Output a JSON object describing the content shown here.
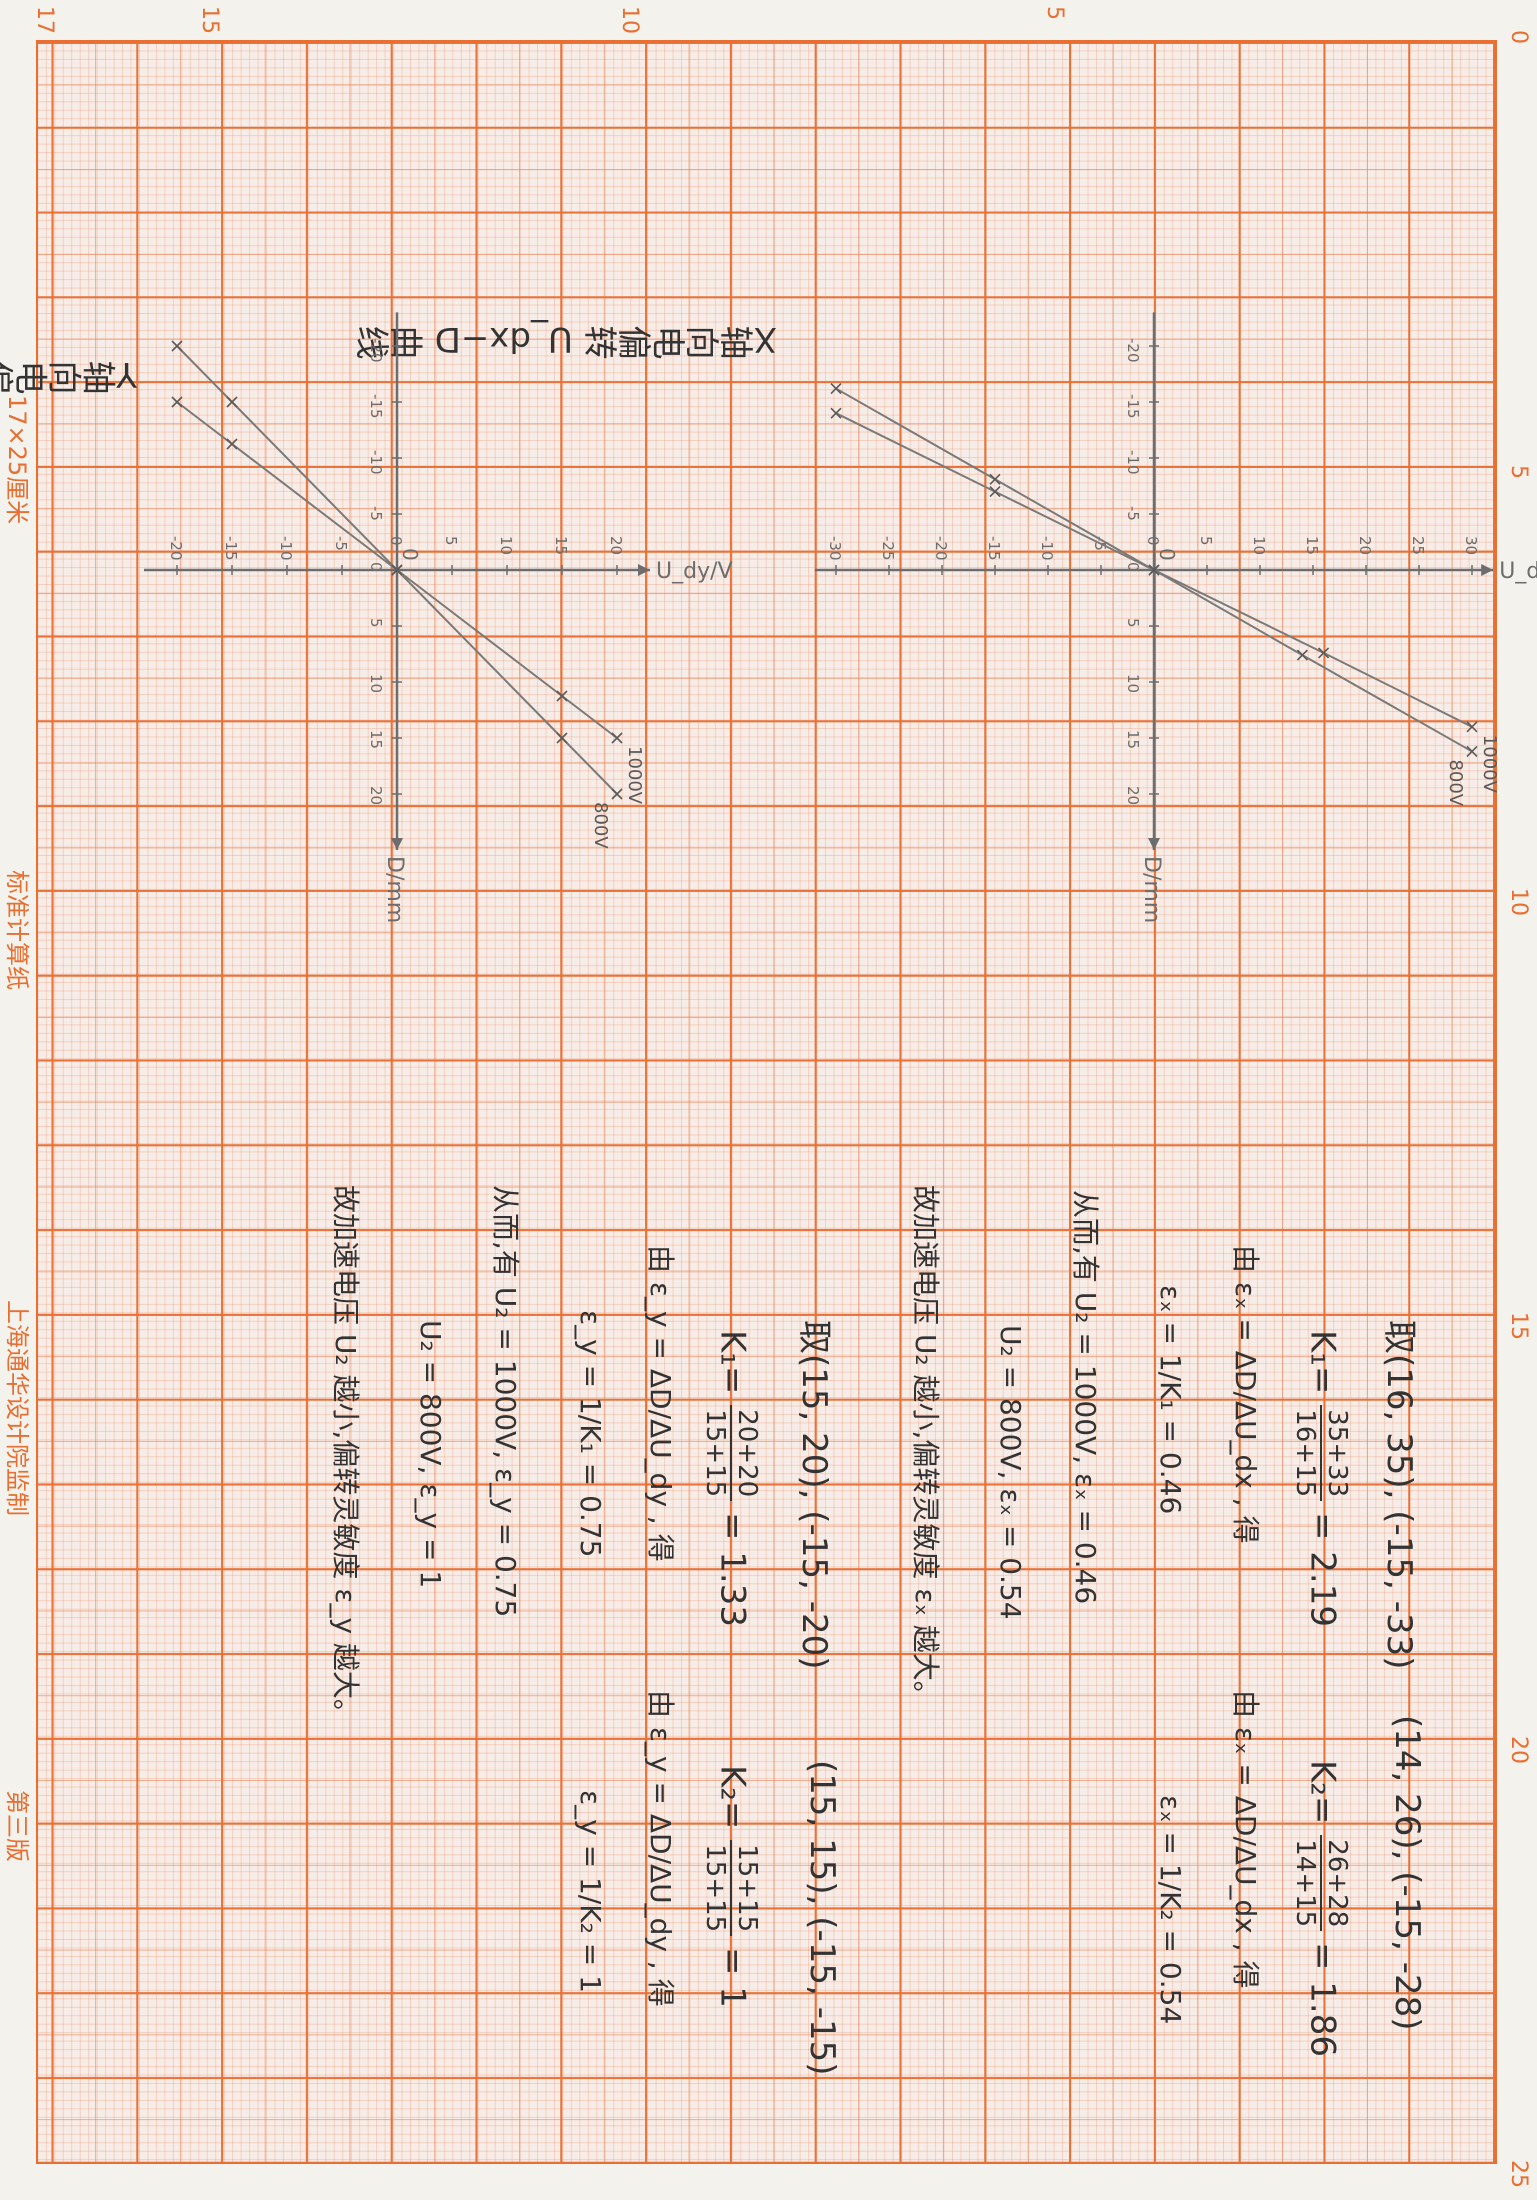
{
  "paper": {
    "edge_numbers_top": [
      "0",
      "5",
      "10",
      "15",
      "20",
      "25"
    ],
    "edge_numbers_side": [
      "17",
      "15",
      "10",
      "5"
    ],
    "paper_size_label": "17×25厘米",
    "brand_labels": [
      "标准计算纸",
      "上海通华设计院监制",
      "第三版"
    ]
  },
  "chart_data": [
    {
      "type": "line",
      "title": "X轴向电偏转 U_dx−D 曲线",
      "xlabel": "U_dx/V",
      "ylabel": "D/mm",
      "x_ticks": [
        "-30",
        "-25",
        "-20",
        "-15",
        "-10",
        "-5",
        "0",
        "5",
        "10",
        "15",
        "20",
        "25",
        "30"
      ],
      "y_ticks": [
        "-20",
        "-15",
        "-10",
        "-5",
        "0",
        "5",
        "10",
        "15",
        "20"
      ],
      "series": [
        {
          "name": "1000V",
          "slope": 0.46,
          "x": [
            -30,
            -15,
            0,
            16,
            30
          ],
          "y": [
            -14,
            -7,
            0,
            7.4,
            14
          ]
        },
        {
          "name": "800V",
          "slope": 0.54,
          "x": [
            -30,
            -15,
            0,
            14,
            30
          ],
          "y": [
            -16.2,
            -8.1,
            0,
            7.6,
            16.2
          ]
        }
      ]
    },
    {
      "type": "line",
      "title": "Y轴向电偏转 U_dy−D 曲线",
      "xlabel": "U_dy/V",
      "ylabel": "D/mm",
      "x_ticks": [
        "-20",
        "-15",
        "-10",
        "-5",
        "0",
        "5",
        "10",
        "15",
        "20"
      ],
      "y_ticks": [
        "-20",
        "-15",
        "-10",
        "-5",
        "0",
        "5",
        "10",
        "15",
        "20"
      ],
      "series": [
        {
          "name": "1000V",
          "slope": 0.75,
          "x": [
            -20,
            -15,
            0,
            15,
            20
          ],
          "y": [
            -15,
            -11.25,
            0,
            11.25,
            15
          ]
        },
        {
          "name": "800V",
          "slope": 1,
          "x": [
            -20,
            -15,
            0,
            15,
            20
          ],
          "y": [
            -20,
            -15,
            0,
            15,
            20
          ]
        }
      ]
    }
  ],
  "notes": {
    "x_pick1": "取(16, 35), (-15, -33)",
    "x_pick2": "(14, 26), (-15, -28)",
    "x_k1_lhs": "K₁=",
    "x_k1_num": "35+33",
    "x_k1_den": "16+15",
    "x_k1_res": "= 2.19",
    "x_k2_lhs": "K₂=",
    "x_k2_num": "26+28",
    "x_k2_den": "14+15",
    "x_k2_res": "= 1.86",
    "x_eps_def1": "由 εₓ = ΔD/ΔU_dx , 得",
    "x_eps_def2": "由 εₓ = ΔD/ΔU_dx , 得",
    "x_eps1": "εₓ = 1/K₁ = 0.46",
    "x_eps2": "εₓ = 1/K₂ = 0.54",
    "x_result1": "从而,有 U₂ = 1000V, εₓ = 0.46",
    "x_result2": "U₂ = 800V, εₓ = 0.54",
    "x_conclusion": "故加速电压 U₂ 越小,偏转灵敏度 εₓ 越大。",
    "y_pick1": "取(15, 20), (-15, -20)",
    "y_pick2": "(15, 15), (-15, -15)",
    "y_k1_lhs": "K₁=",
    "y_k1_num": "20+20",
    "y_k1_den": "15+15",
    "y_k1_res": "= 1.33",
    "y_k2_lhs": "K₂=",
    "y_k2_num": "15+15",
    "y_k2_den": "15+15",
    "y_k2_res": "= 1",
    "y_eps_def1": "由 ε_y = ΔD/ΔU_dy , 得",
    "y_eps_def2": "由 ε_y = ΔD/ΔU_dy , 得",
    "y_eps1": "ε_y = 1/K₁ = 0.75",
    "y_eps2": "ε_y = 1/K₂ = 1",
    "y_result1": "从而,有 U₂ = 1000V, ε_y = 0.75",
    "y_result2": "U₂ = 800V, ε_y = 1",
    "y_conclusion": "故加速电压 U₂ 越小,偏转灵敏度 ε_y 越大。"
  }
}
